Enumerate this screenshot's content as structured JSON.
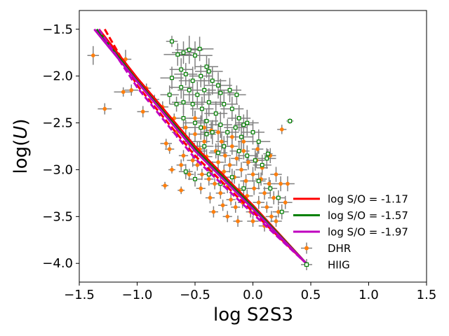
{
  "chart_data": {
    "type": "scatter",
    "title": "",
    "xlabel": "log S2S3",
    "ylabel_prefix": "log(",
    "ylabel_var": "U",
    "ylabel_suffix": ")",
    "xlim": [
      -1.5,
      1.5
    ],
    "ylim": [
      -4.2,
      -1.3
    ],
    "x_ticks": [
      -1.5,
      -1.0,
      -0.5,
      0.0,
      0.5,
      1.0,
      1.5
    ],
    "x_tick_labels": [
      "−1.5",
      "−1.0",
      "−0.5",
      "0.0",
      "0.5",
      "1.0",
      "1.5"
    ],
    "y_ticks": [
      -1.5,
      -2.0,
      -2.5,
      -3.0,
      -3.5,
      -4.0
    ],
    "y_tick_labels": [
      "−1.5",
      "−2.0",
      "−2.5",
      "−3.0",
      "−3.5",
      "−4.0"
    ],
    "legend_position": "lower-right",
    "colors": {
      "red": "#ff0000",
      "green": "#008000",
      "magenta": "#bf00bf",
      "dhr_marker": "#ff7f0e",
      "hiig_marker": "#008000",
      "errorbar": "#808080"
    },
    "lines": [
      {
        "name": "log S/O = -1.17",
        "color": "#ff0000",
        "style": "solid",
        "x": [
          -1.33,
          -1.0,
          -0.5,
          0.0,
          0.46
        ],
        "y": [
          -1.5,
          -2.02,
          -2.75,
          -3.38,
          -4.0
        ]
      },
      {
        "name": "log S/O = -1.17 (dashed)",
        "color": "#ff0000",
        "style": "dashed",
        "x": [
          -1.28,
          -1.0,
          -0.5,
          0.0,
          0.46
        ],
        "y": [
          -1.5,
          -2.1,
          -2.85,
          -3.45,
          -4.0
        ]
      },
      {
        "name": "log S/O = -1.57",
        "color": "#008000",
        "style": "solid",
        "x": [
          -1.35,
          -1.0,
          -0.5,
          0.0,
          0.46
        ],
        "y": [
          -1.5,
          -2.05,
          -2.78,
          -3.4,
          -4.0
        ]
      },
      {
        "name": "log S/O = -1.97",
        "color": "#bf00bf",
        "style": "solid",
        "x": [
          -1.37,
          -1.0,
          -0.5,
          0.0,
          0.46
        ],
        "y": [
          -1.5,
          -2.06,
          -2.8,
          -3.42,
          -4.0
        ]
      },
      {
        "name": "log S/O = -1.97 (dashed)",
        "color": "#bf00bf",
        "style": "dashed",
        "x": [
          -1.33,
          -1.0,
          -0.5,
          0.0,
          0.46
        ],
        "y": [
          -1.5,
          -2.12,
          -2.88,
          -3.47,
          -4.0
        ]
      }
    ],
    "legend": [
      {
        "label": "log S/O = -1.17",
        "kind": "line",
        "color": "#ff0000"
      },
      {
        "label": "log S/O = -1.57",
        "kind": "line",
        "color": "#008000"
      },
      {
        "label": "log S/O = -1.97",
        "kind": "line",
        "color": "#bf00bf"
      },
      {
        "label": "DHR",
        "kind": "dhr"
      },
      {
        "label": "HIIG",
        "kind": "hiig"
      }
    ],
    "series": [
      {
        "name": "DHR",
        "marker": "filled-circle",
        "color": "#ff7f0e",
        "points": [
          [
            -1.38,
            -1.78,
            0.05,
            0.1
          ],
          [
            -1.28,
            -2.35,
            0.06,
            0.06
          ],
          [
            -1.1,
            -1.82,
            0.05,
            0.1
          ],
          [
            -1.12,
            -2.17,
            0.08,
            0.05
          ],
          [
            -1.05,
            -2.15,
            0.06,
            0.06
          ],
          [
            -0.95,
            -2.38,
            0.05,
            0.06
          ],
          [
            -0.92,
            -2.13,
            0.04,
            0.05
          ],
          [
            -0.85,
            -2.25,
            0.04,
            0.05
          ],
          [
            -0.78,
            -2.33,
            0.05,
            0.06
          ],
          [
            -0.75,
            -2.72,
            0.05,
            0.05
          ],
          [
            -0.72,
            -2.78,
            0.04,
            0.05
          ],
          [
            -0.7,
            -3.0,
            0.03,
            0.04
          ],
          [
            -0.68,
            -2.45,
            0.04,
            0.05
          ],
          [
            -0.76,
            -3.17,
            0.03,
            0.04
          ],
          [
            -0.62,
            -3.22,
            0.03,
            0.04
          ],
          [
            -0.6,
            -2.85,
            0.04,
            0.06
          ],
          [
            -0.58,
            -2.55,
            0.05,
            0.08
          ],
          [
            -0.55,
            -2.72,
            0.05,
            0.08
          ],
          [
            -0.52,
            -2.9,
            0.05,
            0.07
          ],
          [
            -0.5,
            -2.62,
            0.05,
            0.08
          ],
          [
            -0.48,
            -2.95,
            0.04,
            0.06
          ],
          [
            -0.46,
            -2.78,
            0.05,
            0.08
          ],
          [
            -0.44,
            -3.05,
            0.04,
            0.06
          ],
          [
            -0.42,
            -2.7,
            0.05,
            0.07
          ],
          [
            -0.4,
            -2.86,
            0.05,
            0.08
          ],
          [
            -0.38,
            -3.1,
            0.04,
            0.07
          ],
          [
            -0.36,
            -2.58,
            0.05,
            0.09
          ],
          [
            -0.35,
            -2.98,
            0.05,
            0.07
          ],
          [
            -0.33,
            -3.15,
            0.04,
            0.06
          ],
          [
            -0.32,
            -2.8,
            0.05,
            0.08
          ],
          [
            -0.3,
            -2.92,
            0.05,
            0.07
          ],
          [
            -0.28,
            -3.25,
            0.04,
            0.06
          ],
          [
            -0.27,
            -2.7,
            0.05,
            0.09
          ],
          [
            -0.25,
            -3.02,
            0.05,
            0.07
          ],
          [
            -0.24,
            -2.85,
            0.05,
            0.08
          ],
          [
            -0.22,
            -3.18,
            0.04,
            0.07
          ],
          [
            -0.2,
            -2.95,
            0.05,
            0.08
          ],
          [
            -0.19,
            -3.32,
            0.04,
            0.06
          ],
          [
            -0.18,
            -2.75,
            0.05,
            0.09
          ],
          [
            -0.16,
            -3.08,
            0.05,
            0.07
          ],
          [
            -0.15,
            -3.4,
            0.04,
            0.06
          ],
          [
            -0.14,
            -2.88,
            0.05,
            0.08
          ],
          [
            -0.12,
            -3.22,
            0.05,
            0.07
          ],
          [
            -0.1,
            -3.0,
            0.05,
            0.08
          ],
          [
            -0.09,
            -3.35,
            0.04,
            0.06
          ],
          [
            -0.08,
            -2.8,
            0.05,
            0.09
          ],
          [
            -0.06,
            -3.12,
            0.05,
            0.07
          ],
          [
            -0.05,
            -3.28,
            0.05,
            0.07
          ],
          [
            -0.04,
            -2.92,
            0.05,
            0.08
          ],
          [
            -0.02,
            -3.45,
            0.04,
            0.06
          ],
          [
            0.0,
            -3.05,
            0.05,
            0.08
          ],
          [
            0.01,
            -3.2,
            0.05,
            0.07
          ],
          [
            0.03,
            -2.9,
            0.05,
            0.08
          ],
          [
            0.05,
            -3.35,
            0.05,
            0.07
          ],
          [
            0.07,
            -3.1,
            0.05,
            0.07
          ],
          [
            0.08,
            -2.98,
            0.05,
            0.08
          ],
          [
            0.1,
            -3.25,
            0.05,
            0.07
          ],
          [
            0.12,
            -3.4,
            0.05,
            0.06
          ],
          [
            0.14,
            -3.15,
            0.05,
            0.07
          ],
          [
            0.16,
            -3.5,
            0.05,
            0.06
          ],
          [
            0.18,
            -3.3,
            0.05,
            0.07
          ],
          [
            0.2,
            -3.05,
            0.05,
            0.08
          ],
          [
            0.22,
            -3.45,
            0.05,
            0.06
          ],
          [
            0.24,
            -3.15,
            0.06,
            0.08
          ],
          [
            0.25,
            -2.57,
            0.04,
            0.05
          ],
          [
            0.28,
            -3.35,
            0.06,
            0.07
          ],
          [
            0.3,
            -3.15,
            0.06,
            0.08
          ],
          [
            -0.45,
            -3.2,
            0.04,
            0.06
          ],
          [
            -0.37,
            -3.3,
            0.04,
            0.06
          ],
          [
            -0.26,
            -3.38,
            0.04,
            0.06
          ],
          [
            -0.13,
            -3.55,
            0.04,
            0.06
          ],
          [
            -0.55,
            -3.05,
            0.04,
            0.06
          ],
          [
            -0.62,
            -2.95,
            0.04,
            0.06
          ],
          [
            -0.66,
            -2.6,
            0.04,
            0.06
          ],
          [
            -0.5,
            -2.45,
            0.05,
            0.08
          ],
          [
            -0.42,
            -2.55,
            0.05,
            0.09
          ],
          [
            -0.3,
            -2.6,
            0.05,
            0.09
          ],
          [
            -0.18,
            -2.65,
            0.05,
            0.09
          ],
          [
            -0.08,
            -2.7,
            0.05,
            0.09
          ],
          [
            0.04,
            -2.78,
            0.05,
            0.09
          ],
          [
            0.15,
            -2.85,
            0.05,
            0.08
          ],
          [
            -0.34,
            -3.45,
            0.04,
            0.06
          ],
          [
            -0.22,
            -3.5,
            0.04,
            0.06
          ],
          [
            0.0,
            -3.55,
            0.05,
            0.06
          ],
          [
            0.1,
            -3.6,
            0.05,
            0.06
          ],
          [
            0.2,
            -3.55,
            0.05,
            0.06
          ]
        ]
      },
      {
        "name": "HIIG",
        "marker": "open-square",
        "color": "#008000",
        "points": [
          [
            -0.7,
            -1.63,
            0.05,
            0.06
          ],
          [
            -0.65,
            -1.77,
            0.12,
            0.12
          ],
          [
            -0.6,
            -1.75,
            0.1,
            0.12
          ],
          [
            -0.55,
            -1.72,
            0.12,
            0.15
          ],
          [
            -0.5,
            -1.78,
            0.15,
            0.15
          ],
          [
            -0.46,
            -1.71,
            0.12,
            0.13
          ],
          [
            -0.4,
            -1.9,
            0.1,
            0.12
          ],
          [
            -0.62,
            -1.93,
            0.1,
            0.12
          ],
          [
            -0.58,
            -1.98,
            0.1,
            0.12
          ],
          [
            -0.7,
            -2.02,
            0.1,
            0.12
          ],
          [
            -0.52,
            -2.05,
            0.12,
            0.15
          ],
          [
            -0.45,
            -2.0,
            0.1,
            0.12
          ],
          [
            -0.38,
            -1.95,
            0.12,
            0.14
          ],
          [
            -0.35,
            -2.05,
            0.12,
            0.15
          ],
          [
            -0.3,
            -2.1,
            0.12,
            0.14
          ],
          [
            -0.62,
            -2.12,
            0.1,
            0.12
          ],
          [
            -0.55,
            -2.15,
            0.1,
            0.12
          ],
          [
            -0.48,
            -2.2,
            0.12,
            0.14
          ],
          [
            -0.42,
            -2.15,
            0.1,
            0.13
          ],
          [
            -0.28,
            -2.18,
            0.12,
            0.15
          ],
          [
            -0.2,
            -2.15,
            0.1,
            0.13
          ],
          [
            -0.72,
            -2.2,
            0.08,
            0.1
          ],
          [
            -0.6,
            -2.28,
            0.1,
            0.12
          ],
          [
            -0.52,
            -2.3,
            0.1,
            0.13
          ],
          [
            -0.44,
            -2.35,
            0.1,
            0.13
          ],
          [
            -0.38,
            -2.28,
            0.12,
            0.15
          ],
          [
            -0.32,
            -2.4,
            0.1,
            0.13
          ],
          [
            -0.25,
            -2.3,
            0.12,
            0.15
          ],
          [
            -0.18,
            -2.35,
            0.1,
            0.13
          ],
          [
            -0.12,
            -2.45,
            0.1,
            0.14
          ],
          [
            -0.6,
            -2.45,
            0.1,
            0.12
          ],
          [
            -0.5,
            -2.5,
            0.1,
            0.13
          ],
          [
            -0.45,
            -2.55,
            0.1,
            0.13
          ],
          [
            -0.4,
            -2.48,
            0.1,
            0.13
          ],
          [
            -0.35,
            -2.6,
            0.1,
            0.13
          ],
          [
            -0.28,
            -2.52,
            0.1,
            0.14
          ],
          [
            -0.22,
            -2.6,
            0.1,
            0.14
          ],
          [
            -0.15,
            -2.55,
            0.1,
            0.14
          ],
          [
            -0.1,
            -2.65,
            0.1,
            0.14
          ],
          [
            -0.05,
            -2.5,
            0.1,
            0.14
          ],
          [
            0.0,
            -2.6,
            0.1,
            0.13
          ],
          [
            0.05,
            -2.7,
            0.1,
            0.13
          ],
          [
            -0.55,
            -2.7,
            0.08,
            0.1
          ],
          [
            -0.48,
            -2.8,
            0.08,
            0.1
          ],
          [
            -0.42,
            -2.75,
            0.08,
            0.11
          ],
          [
            -0.3,
            -2.82,
            0.08,
            0.11
          ],
          [
            -0.25,
            -2.75,
            0.08,
            0.11
          ],
          [
            -0.12,
            -2.8,
            0.08,
            0.11
          ],
          [
            -0.05,
            -2.85,
            0.08,
            0.11
          ],
          [
            0.02,
            -2.9,
            0.08,
            0.11
          ],
          [
            0.08,
            -2.95,
            0.08,
            0.11
          ],
          [
            0.12,
            -2.88,
            0.08,
            0.11
          ],
          [
            -0.58,
            -3.02,
            0.06,
            0.08
          ],
          [
            -0.5,
            -3.1,
            0.06,
            0.08
          ],
          [
            -0.38,
            -3.05,
            0.06,
            0.09
          ],
          [
            -0.28,
            -3.15,
            0.06,
            0.09
          ],
          [
            -0.18,
            -3.08,
            0.06,
            0.09
          ],
          [
            -0.08,
            -3.2,
            0.06,
            0.09
          ],
          [
            0.05,
            -3.12,
            0.06,
            0.09
          ],
          [
            0.15,
            -3.2,
            0.06,
            0.09
          ],
          [
            0.22,
            -3.3,
            0.06,
            0.08
          ],
          [
            0.25,
            -3.45,
            0.06,
            0.08
          ],
          [
            0.32,
            -2.48,
            0.03,
            0.03
          ],
          [
            0.13,
            -2.83,
            0.04,
            0.05
          ],
          [
            -0.66,
            -2.3,
            0.06,
            0.08
          ],
          [
            -0.4,
            -2.62,
            0.08,
            0.1
          ],
          [
            -0.14,
            -2.2,
            0.08,
            0.1
          ],
          [
            -0.08,
            -2.52,
            0.08,
            0.11
          ]
        ]
      }
    ]
  }
}
